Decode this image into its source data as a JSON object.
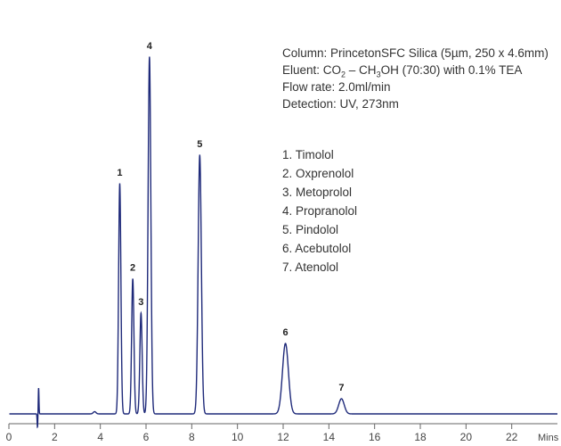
{
  "chart_data": {
    "type": "line",
    "xlabel": "Mins",
    "xlim": [
      0,
      24
    ],
    "x_ticks": [
      "0",
      "2",
      "4",
      "6",
      "8",
      "10",
      "12",
      "14",
      "16",
      "18",
      "20",
      "22"
    ],
    "line_color": "#1f2a7a",
    "baseline": 0,
    "ylim": [
      -2,
      82
    ],
    "peaks": [
      {
        "label": "1",
        "time": 4.85,
        "height": 51.6,
        "width": 0.05
      },
      {
        "label": "2",
        "time": 5.42,
        "height": 30.3,
        "width": 0.05
      },
      {
        "label": "3",
        "time": 5.78,
        "height": 22.6,
        "width": 0.05
      },
      {
        "label": "4",
        "time": 6.15,
        "height": 80.0,
        "width": 0.06
      },
      {
        "label": "5",
        "time": 8.35,
        "height": 58.0,
        "width": 0.07
      },
      {
        "label": "6",
        "time": 12.1,
        "height": 15.8,
        "width": 0.13
      },
      {
        "label": "7",
        "time": 14.55,
        "height": 3.4,
        "width": 0.12
      }
    ],
    "artifacts": [
      {
        "time": 1.3,
        "height": 5.8,
        "width": 0.015
      },
      {
        "time": 1.25,
        "height": -3.0,
        "width": 0.015
      },
      {
        "time": 3.75,
        "height": 0.5,
        "width": 0.06
      }
    ]
  },
  "conditions": {
    "column": "Column: PrincetonSFC Silica (5µm, 250 x 4.6mm)",
    "eluent_prefix": "Eluent: CO",
    "eluent_sub1": "2",
    "eluent_mid": " – CH",
    "eluent_sub2": "3",
    "eluent_suffix": "OH (70:30) with 0.1% TEA",
    "flow_rate": "Flow rate: 2.0ml/min",
    "detection": "Detection: UV, 273nm"
  },
  "legend": [
    "1. Timolol",
    "2. Oxprenolol",
    "3. Metoprolol",
    "4. Propranolol",
    "5. Pindolol",
    "6. Acebutolol",
    "7. Atenolol"
  ]
}
